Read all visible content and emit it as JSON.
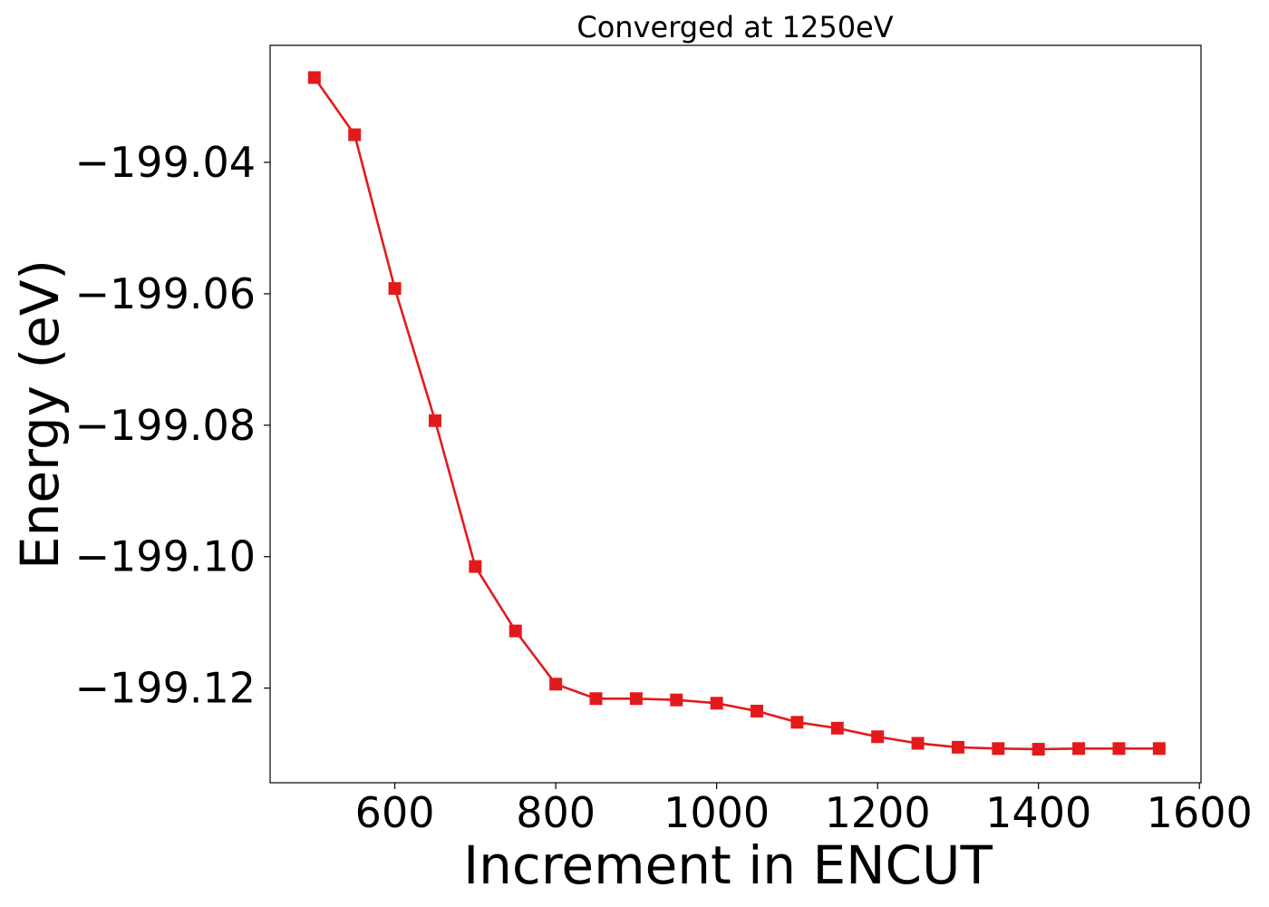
{
  "chart_data": {
    "type": "line",
    "title": "Converged at 1250eV",
    "xlabel": "Increment in ENCUT",
    "ylabel": "Energy (eV)",
    "xlim": [
      445,
      1602
    ],
    "ylim": [
      -199.1344,
      -199.0222
    ],
    "x_ticks": [
      600,
      800,
      1000,
      1200,
      1400,
      1600
    ],
    "x_tick_labels": [
      "600",
      "800",
      "1000",
      "1200",
      "1400",
      "1600"
    ],
    "y_ticks": [
      -199.04,
      -199.06,
      -199.08,
      -199.1,
      -199.12
    ],
    "y_tick_labels": [
      "−199.04",
      "−199.06",
      "−199.08",
      "−199.10",
      "−199.12"
    ],
    "grid": false,
    "legend": "none",
    "series": [
      {
        "color": "#e31a1c",
        "marker": "square",
        "x": [
          500,
          550,
          600,
          650,
          700,
          750,
          800,
          850,
          900,
          950,
          1000,
          1050,
          1100,
          1150,
          1200,
          1250,
          1300,
          1350,
          1400,
          1450,
          1500,
          1550
        ],
        "y": [
          -199.0271,
          -199.0358,
          -199.0592,
          -199.0793,
          -199.1015,
          -199.1113,
          -199.1194,
          -199.1216,
          -199.1216,
          -199.1218,
          -199.1223,
          -199.1235,
          -199.1252,
          -199.1261,
          -199.1274,
          -199.1284,
          -199.129,
          -199.1292,
          -199.1293,
          -199.1292,
          -199.1292,
          -199.1292
        ]
      }
    ]
  }
}
